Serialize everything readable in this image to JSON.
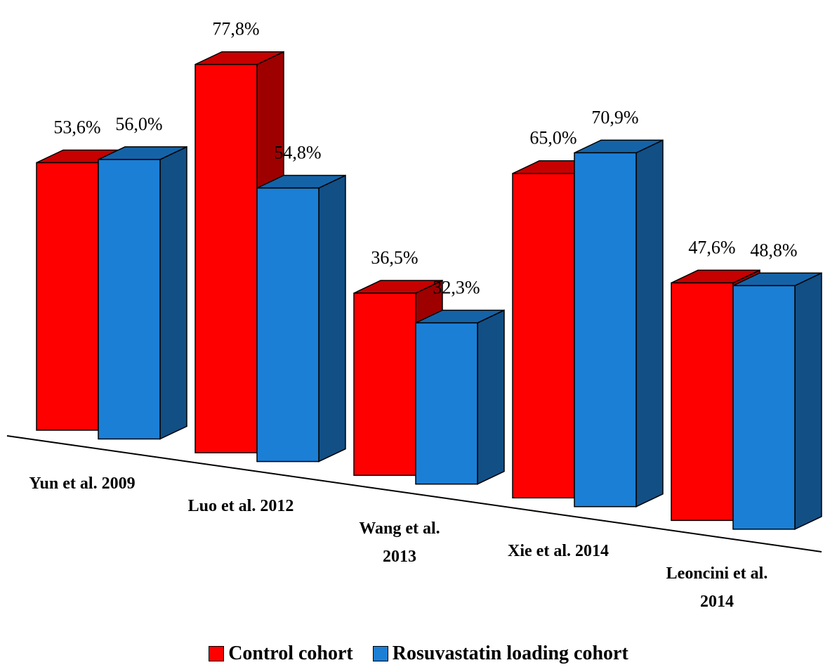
{
  "chart_data": {
    "type": "bar3d",
    "categories": [
      "Yun et al. 2009",
      "Luo et al. 2012",
      "Wang et al.\n2013",
      "Xie et al. 2014",
      "Leoncini et al.\n2014"
    ],
    "series": [
      {
        "name": "Control cohort",
        "color": "#ff0000",
        "values": [
          53.6,
          77.8,
          36.5,
          65.0,
          47.6
        ],
        "value_labels": [
          "53,6%",
          "77,8%",
          "36,5%",
          "65,0%",
          "47,6%"
        ]
      },
      {
        "name": "Rosuvastatin loading cohort",
        "color": "#1b7fd6",
        "values": [
          56.0,
          54.8,
          32.3,
          70.9,
          48.8
        ],
        "value_labels": [
          "56,0%",
          "54,8%",
          "32,3%",
          "70,9%",
          "48,8%"
        ]
      }
    ],
    "legend": "bottom"
  }
}
